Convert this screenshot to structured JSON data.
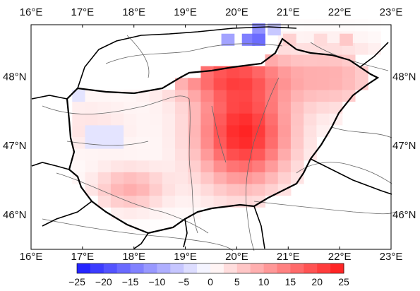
{
  "axes": {
    "lon_ticks": [
      "16°E",
      "17°E",
      "18°E",
      "19°E",
      "20°E",
      "21°E",
      "22°E",
      "23°E"
    ],
    "lat_ticks": [
      "48°N",
      "47°N",
      "46°N"
    ]
  },
  "colorbar": {
    "ticks": [
      "−25",
      "−20",
      "−15",
      "−10",
      "−5",
      "0",
      "5",
      "10",
      "15",
      "20",
      "25"
    ],
    "min": -25,
    "max": 25,
    "colors": {
      "negative": "#1a1aff",
      "zero": "#ffffff",
      "positive": "#ff1a1a"
    }
  },
  "map_data": {
    "lon_range": [
      16,
      23
    ],
    "lat_range": [
      45.5,
      48.75
    ],
    "cell_lon_step": 0.25,
    "cell_lat_step": 0.17,
    "grid_note_none": "",
    "cells": [
      {
        "lon": 20.3,
        "lat": 48.6,
        "v": -12
      },
      {
        "lon": 20.1,
        "lat": 48.45,
        "v": -14
      },
      {
        "lon": 20.6,
        "lat": 48.6,
        "v": -6
      },
      {
        "lon": 19.7,
        "lat": 48.45,
        "v": -10
      },
      {
        "lon": 20.3,
        "lat": 48.45,
        "v": -16
      },
      {
        "lon": 20.9,
        "lat": 48.45,
        "v": 5
      },
      {
        "lon": 21.5,
        "lat": 48.45,
        "v": 4
      },
      {
        "lon": 22.0,
        "lat": 48.45,
        "v": 6
      }
    ]
  }
}
